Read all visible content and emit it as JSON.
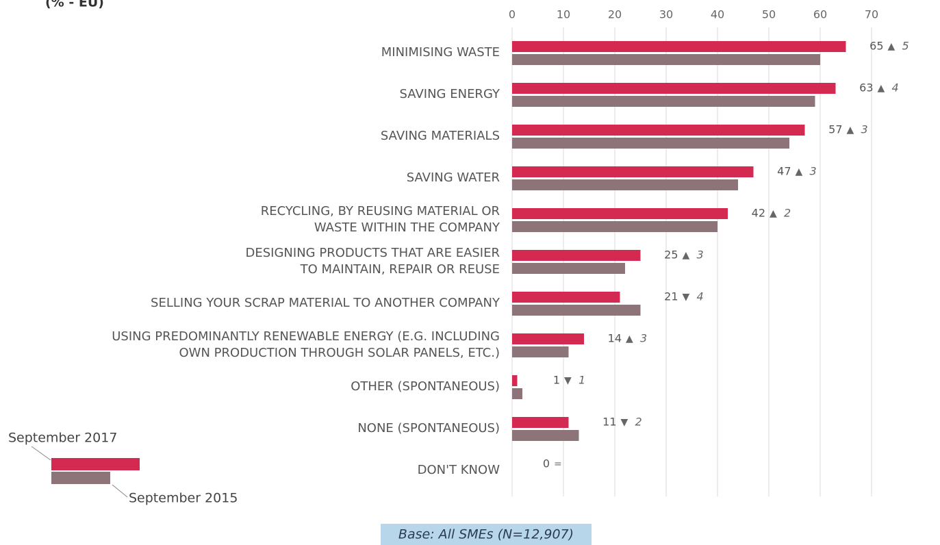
{
  "chart_data": {
    "type": "bar",
    "orientation": "horizontal",
    "subtitle": "(% - EU)",
    "categories": [
      "MINIMISING WASTE",
      "SAVING ENERGY",
      "SAVING MATERIALS",
      "SAVING WATER",
      "RECYCLING, BY REUSING MATERIAL OR\nWASTE WITHIN THE COMPANY",
      "DESIGNING PRODUCTS THAT ARE EASIER\nTO MAINTAIN, REPAIR OR REUSE",
      "SELLING YOUR SCRAP MATERIAL TO ANOTHER COMPANY",
      "USING PREDOMINANTLY RENEWABLE ENERGY (E.G. INCLUDING\nOWN PRODUCTION THROUGH SOLAR PANELS, ETC.)",
      "OTHER (SPONTANEOUS)",
      "NONE (SPONTANEOUS)",
      "DON'T KNOW"
    ],
    "series": [
      {
        "name": "September 2017",
        "color": "#d42a52",
        "values": [
          65,
          63,
          57,
          47,
          42,
          25,
          21,
          14,
          1,
          11,
          0
        ]
      },
      {
        "name": "September 2015",
        "color": "#8d7479",
        "values": [
          60,
          59,
          54,
          44,
          40,
          22,
          25,
          11,
          2,
          13,
          0
        ]
      }
    ],
    "change_symbols": [
      "▲",
      "▲",
      "▲",
      "▲",
      "▲",
      "▲",
      "▼",
      "▲",
      "▼",
      "▼",
      "="
    ],
    "changes": [
      5,
      4,
      3,
      3,
      2,
      3,
      4,
      3,
      1,
      2,
      null
    ],
    "xlim": [
      0,
      70
    ],
    "xticks": [
      0,
      10,
      20,
      30,
      40,
      50,
      60,
      70
    ],
    "grid": true,
    "footnote": "Base: All SMEs (N=12,907)"
  }
}
